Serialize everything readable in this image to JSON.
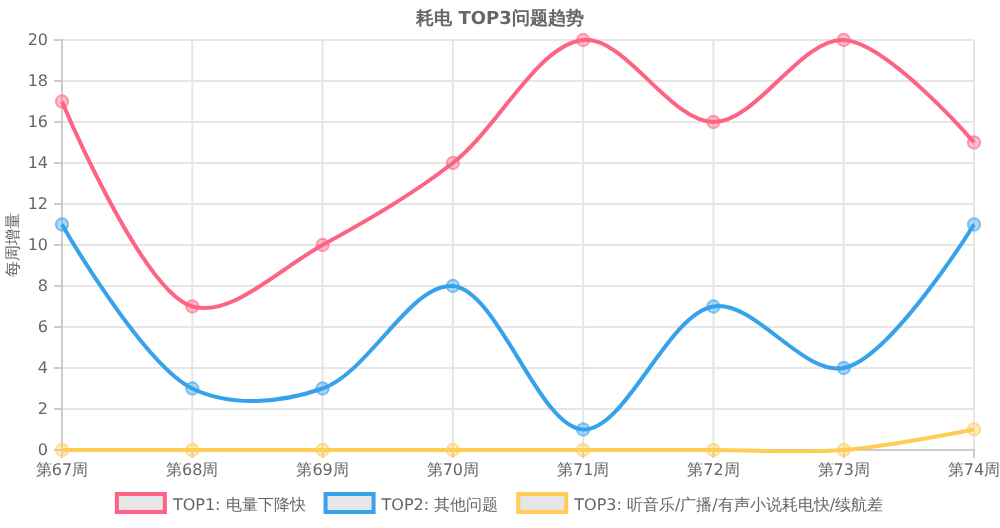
{
  "chart_data": {
    "type": "line",
    "title": "耗电 TOP3问题趋势",
    "ylabel": "每周增量",
    "categories": [
      "第67周",
      "第68周",
      "第69周",
      "第70周",
      "第71周",
      "第72周",
      "第73周",
      "第74周"
    ],
    "series": [
      {
        "name": "TOP1: 电量下降快",
        "color": "#ff6384",
        "values": [
          17,
          7,
          10,
          14,
          20,
          16,
          20,
          15
        ]
      },
      {
        "name": "TOP2: 其他问题",
        "color": "#36a2eb",
        "values": [
          11,
          3,
          3,
          8,
          1,
          7,
          4,
          11
        ]
      },
      {
        "name": "TOP3: 听音乐/广播/有声小说耗电快/续航差",
        "color": "#ffcd56",
        "values": [
          0,
          0,
          0,
          0,
          0,
          0,
          0,
          1
        ]
      }
    ],
    "ylim": [
      0,
      20
    ],
    "yticks": [
      0,
      2,
      4,
      6,
      8,
      10,
      12,
      14,
      16,
      18,
      20
    ],
    "grid": true,
    "legend": "bottom",
    "marker": "circle",
    "line_style": "solid"
  }
}
